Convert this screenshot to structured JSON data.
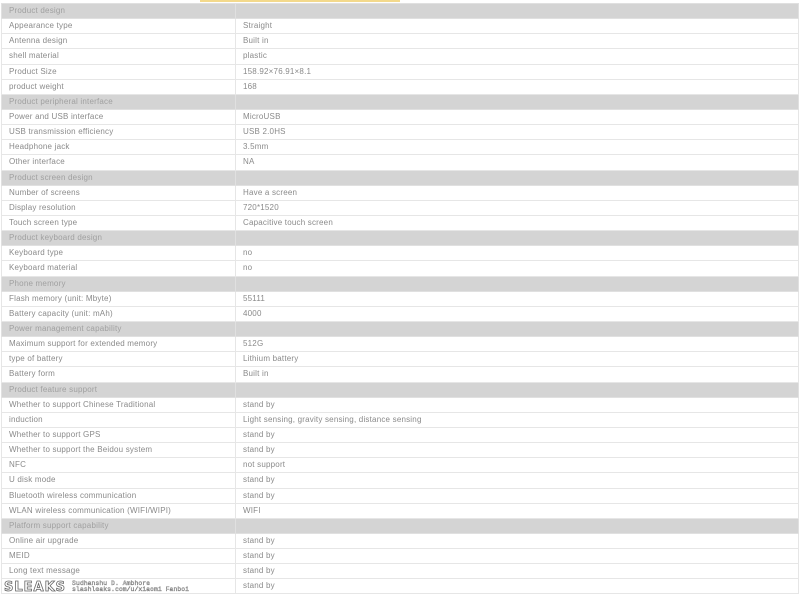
{
  "sections": [
    {
      "title": "Product design",
      "rows": [
        [
          "Appearance type",
          "Straight"
        ],
        [
          "Antenna design",
          "Built in"
        ],
        [
          "shell material",
          "plastic"
        ],
        [
          "Product Size",
          "158.92×76.91×8.1"
        ],
        [
          "product weight",
          "168"
        ]
      ]
    },
    {
      "title": "Product peripheral interface",
      "rows": [
        [
          "Power and USB interface",
          "MicroUSB"
        ],
        [
          "USB transmission efficiency",
          "USB 2.0HS"
        ],
        [
          "Headphone jack",
          "3.5mm"
        ],
        [
          "Other interface",
          "NA"
        ]
      ]
    },
    {
      "title": "Product screen design",
      "rows": [
        [
          "Number of screens",
          "Have a screen"
        ],
        [
          "Display resolution",
          "720*1520"
        ],
        [
          "Touch screen type",
          "Capacitive touch screen"
        ]
      ]
    },
    {
      "title": "Product keyboard design",
      "rows": [
        [
          "Keyboard type",
          "no"
        ],
        [
          "Keyboard material",
          "no"
        ]
      ]
    },
    {
      "title": "Phone memory",
      "rows": [
        [
          "Flash memory (unit: Mbyte)",
          "55111"
        ],
        [
          "Battery capacity (unit: mAh)",
          "4000"
        ]
      ]
    },
    {
      "title": "Power management capability",
      "rows": [
        [
          "Maximum support for extended memory",
          "512G"
        ],
        [
          "type of battery",
          "Lithium battery"
        ],
        [
          "Battery form",
          "Built in"
        ]
      ]
    },
    {
      "title": "Product feature support",
      "rows": [
        [
          "Whether to support Chinese Traditional",
          "stand by"
        ],
        [
          "induction",
          "Light sensing, gravity sensing, distance sensing"
        ],
        [
          "Whether to support GPS",
          "stand by"
        ],
        [
          "Whether to support the Beidou system",
          "stand by"
        ],
        [
          "NFC",
          "not support"
        ],
        [
          "U disk mode",
          "stand by"
        ],
        [
          "Bluetooth wireless communication",
          "stand by"
        ],
        [
          "WLAN wireless communication (WIFI/WIPI)",
          "WIFI"
        ]
      ]
    },
    {
      "title": "Platform support capability",
      "rows": [
        [
          "Online air upgrade",
          "stand by"
        ],
        [
          "MEID",
          "stand by"
        ],
        [
          "Long text message",
          "stand by"
        ],
        [
          "",
          "stand by"
        ]
      ]
    }
  ],
  "watermark": {
    "logo": "SLEAKS",
    "line1": "Sudhanshu D. Ambhore",
    "line2": "slashleaks.com/u/xiaomi Fanboi"
  }
}
